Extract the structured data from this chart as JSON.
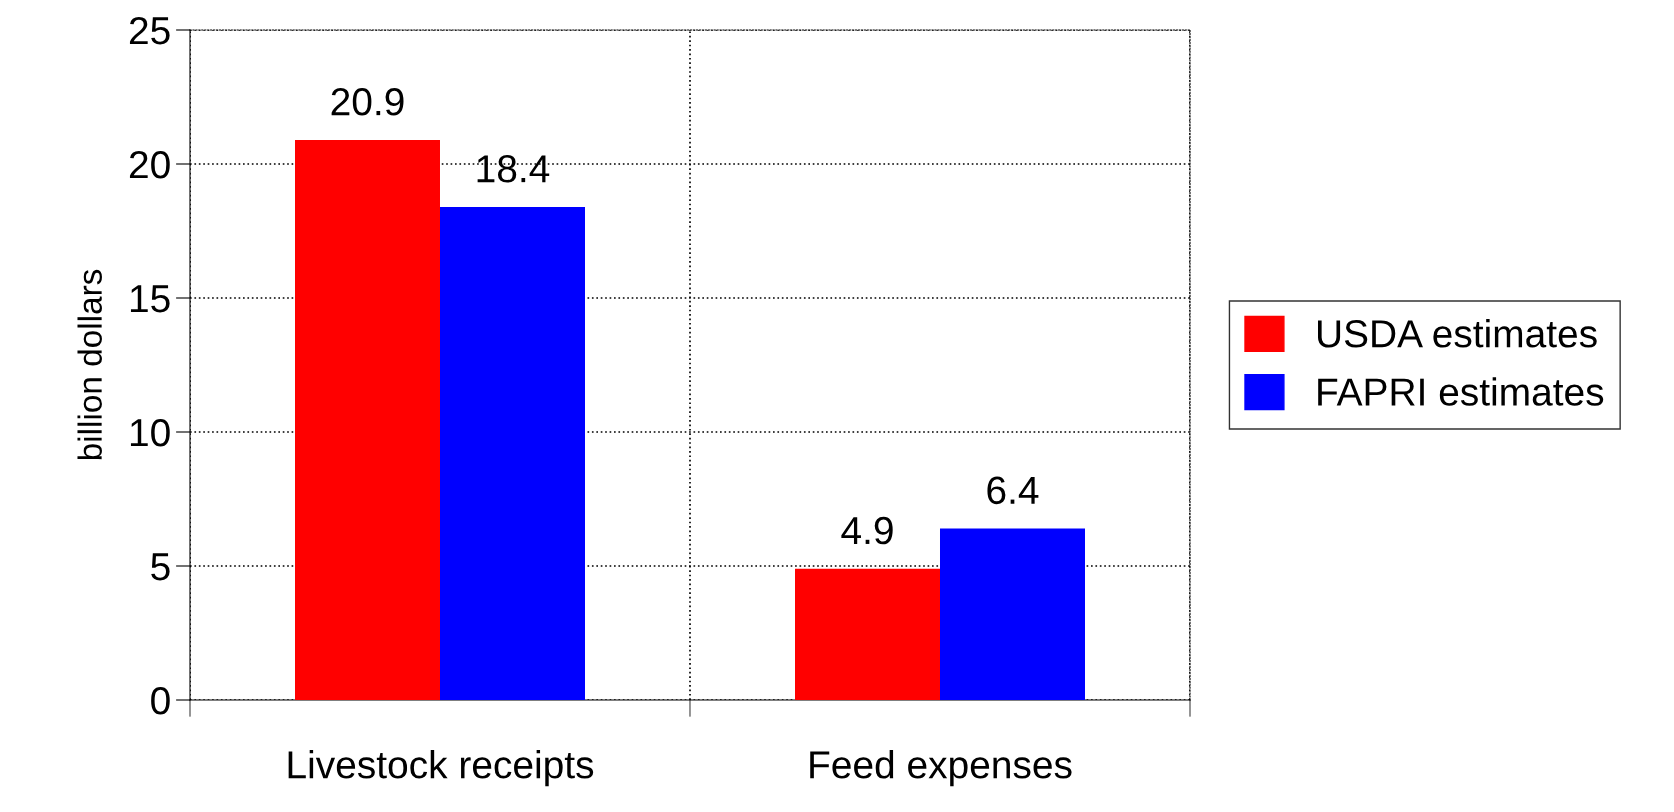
{
  "chart_data": {
    "type": "bar",
    "ylabel": "billion dollars",
    "categories": [
      "Livestock receipts",
      "Feed expenses"
    ],
    "series": [
      {
        "name": "USDA estimates",
        "color": "#ff0000",
        "values": [
          20.9,
          4.9
        ]
      },
      {
        "name": "FAPRI estimates",
        "color": "#0000ff",
        "values": [
          18.4,
          6.4
        ]
      }
    ],
    "ylim": [
      0,
      25
    ],
    "yticks": [
      0,
      5,
      10,
      15,
      20,
      25
    ],
    "grid": true,
    "data_labels": true,
    "legend": "right"
  }
}
